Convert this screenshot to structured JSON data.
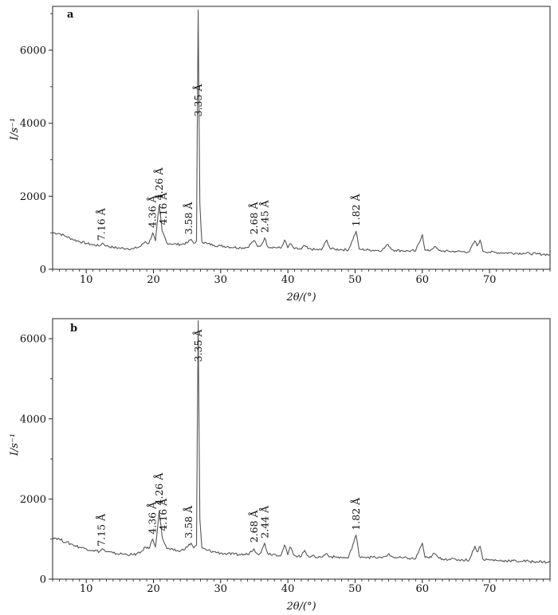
{
  "chart_data": [
    {
      "type": "line",
      "panel_label": "a",
      "xlabel": "2θ/(°)",
      "ylabel": "I/s⁻¹",
      "xlim": [
        5,
        79
      ],
      "ylim": [
        0,
        7200
      ],
      "x_ticks": [
        10,
        20,
        30,
        40,
        50,
        60,
        70
      ],
      "y_ticks": [
        0,
        2000,
        4000,
        6000
      ],
      "grid": false,
      "series": [
        {
          "x": [
            5,
            6,
            7,
            8,
            9,
            10,
            11,
            12,
            12.4,
            13,
            14,
            15,
            16,
            17,
            18,
            18.8,
            19.3,
            19.9,
            20.3,
            20.85,
            21.3,
            22,
            23,
            24,
            25,
            25.6,
            26,
            26.4,
            26.65,
            26.9,
            27.2,
            28,
            29,
            30,
            31,
            32,
            33,
            34,
            34.95,
            35.5,
            36,
            36.55,
            37,
            38,
            39,
            39.5,
            40,
            40.3,
            41,
            42,
            42.5,
            43,
            44,
            45,
            45.8,
            46.3,
            47,
            48,
            49,
            50.15,
            50.6,
            51,
            52,
            53,
            54,
            54.9,
            55.5,
            56,
            57,
            58,
            59,
            60,
            60.4,
            61,
            61.8,
            62.5,
            63,
            64,
            65,
            66,
            67,
            67.8,
            68.15,
            68.6,
            69,
            70,
            71,
            72,
            73,
            74,
            75,
            76,
            77,
            78,
            79
          ],
          "y": [
            1000,
            980,
            900,
            820,
            760,
            710,
            670,
            640,
            720,
            640,
            600,
            580,
            570,
            560,
            620,
            760,
            700,
            1000,
            780,
            1750,
            1050,
            720,
            690,
            680,
            720,
            820,
            710,
            780,
            7100,
            1800,
            760,
            700,
            660,
            640,
            620,
            600,
            590,
            600,
            790,
            620,
            650,
            860,
            620,
            600,
            580,
            800,
            590,
            700,
            560,
            550,
            650,
            560,
            540,
            530,
            800,
            560,
            550,
            540,
            530,
            1040,
            560,
            540,
            530,
            520,
            520,
            680,
            540,
            520,
            510,
            500,
            500,
            950,
            520,
            500,
            620,
            510,
            500,
            490,
            490,
            480,
            480,
            780,
            640,
            800,
            500,
            470,
            460,
            450,
            450,
            440,
            440,
            430,
            420,
            410,
            400
          ]
        }
      ],
      "annotations": [
        {
          "x": 12.3,
          "y": 650,
          "text": "7.16 Å"
        },
        {
          "x": 19.9,
          "y": 1000,
          "text": "4.36 Å"
        },
        {
          "x": 20.9,
          "y": 1760,
          "text": "4.26 Å"
        },
        {
          "x": 21.5,
          "y": 1080,
          "text": "4.16 Å"
        },
        {
          "x": 25.3,
          "y": 820,
          "text": "3.58 Å"
        },
        {
          "x": 26.7,
          "y": 4050,
          "text": "3.35 Å"
        },
        {
          "x": 35.0,
          "y": 820,
          "text": "2.68 Å"
        },
        {
          "x": 36.6,
          "y": 870,
          "text": "2.45 Å"
        },
        {
          "x": 50.2,
          "y": 1040,
          "text": "1.82 Å"
        }
      ]
    },
    {
      "type": "line",
      "panel_label": "b",
      "xlabel": "2θ/(°)",
      "ylabel": "I/s⁻¹",
      "xlim": [
        5,
        79
      ],
      "ylim": [
        0,
        6500
      ],
      "x_ticks": [
        10,
        20,
        30,
        40,
        50,
        60,
        70
      ],
      "y_ticks": [
        0,
        2000,
        4000,
        6000
      ],
      "grid": false,
      "series": [
        {
          "x": [
            5,
            6,
            7,
            8,
            9,
            10,
            11,
            12,
            12.4,
            13,
            14,
            15,
            16,
            17,
            18,
            18.8,
            19.3,
            19.9,
            20.3,
            20.85,
            21.3,
            22,
            23,
            24,
            25,
            25.6,
            26,
            26.4,
            26.65,
            26.9,
            27.2,
            28,
            29,
            30,
            31,
            32,
            33,
            34,
            34.95,
            35.5,
            36,
            36.55,
            37,
            38,
            39,
            39.5,
            40,
            40.3,
            41,
            42,
            42.5,
            43,
            44,
            45,
            45.8,
            46.3,
            47,
            48,
            49,
            50.15,
            50.6,
            51,
            52,
            53,
            54,
            54.9,
            55.5,
            56,
            57,
            58,
            59,
            60,
            60.4,
            61,
            61.8,
            62.5,
            63,
            64,
            65,
            66,
            67,
            67.8,
            68.15,
            68.6,
            69,
            70,
            71,
            72,
            73,
            74,
            75,
            76,
            77,
            78,
            79
          ],
          "y": [
            1050,
            1000,
            920,
            860,
            800,
            760,
            720,
            690,
            760,
            680,
            650,
            630,
            620,
            610,
            650,
            800,
            760,
            1000,
            800,
            1700,
            1050,
            760,
            720,
            700,
            800,
            900,
            780,
            850,
            6450,
            1500,
            780,
            720,
            680,
            650,
            630,
            620,
            610,
            620,
            760,
            630,
            660,
            900,
            640,
            620,
            600,
            850,
            610,
            800,
            590,
            570,
            720,
            580,
            560,
            550,
            640,
            560,
            550,
            540,
            530,
            1100,
            580,
            560,
            550,
            540,
            530,
            620,
            560,
            540,
            530,
            520,
            510,
            900,
            540,
            520,
            640,
            520,
            510,
            500,
            490,
            480,
            480,
            820,
            680,
            820,
            500,
            480,
            470,
            460,
            460,
            450,
            450,
            440,
            440,
            430,
            420
          ]
        }
      ],
      "annotations": [
        {
          "x": 12.3,
          "y": 700,
          "text": "7.15 Å"
        },
        {
          "x": 19.9,
          "y": 1000,
          "text": "4.36 Å"
        },
        {
          "x": 20.9,
          "y": 1720,
          "text": "4.26 Å"
        },
        {
          "x": 21.5,
          "y": 1080,
          "text": "4.16 Å"
        },
        {
          "x": 25.3,
          "y": 900,
          "text": "3.58 Å"
        },
        {
          "x": 26.7,
          "y": 5300,
          "text": "3.35 Å"
        },
        {
          "x": 35.0,
          "y": 790,
          "text": "2.68 Å"
        },
        {
          "x": 36.6,
          "y": 900,
          "text": "2.44 Å"
        },
        {
          "x": 50.2,
          "y": 1100,
          "text": "1.82 Å"
        }
      ]
    }
  ]
}
